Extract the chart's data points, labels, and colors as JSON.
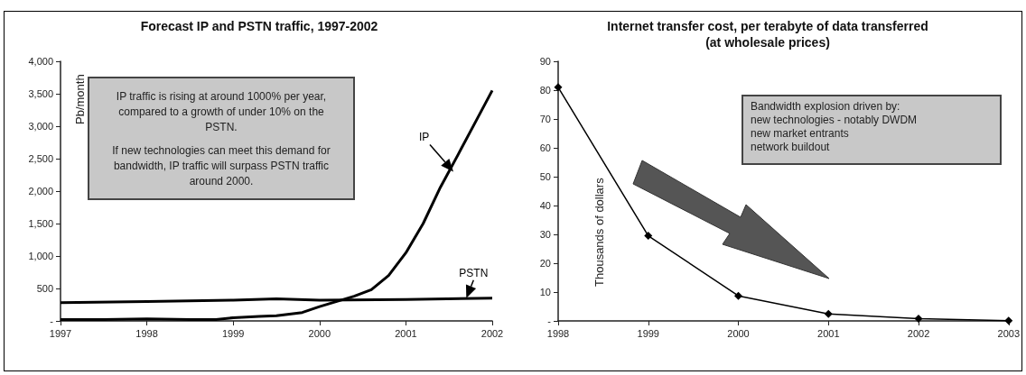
{
  "chart_data": [
    {
      "type": "line",
      "title": "Forecast IP and PSTN traffic, 1997-2002",
      "ylabel": "Pb/month",
      "marker": "none",
      "grid": false,
      "legend": false,
      "xlim": [
        1997,
        2002
      ],
      "xticks": [
        1997,
        1998,
        1999,
        2000,
        2001,
        2002
      ],
      "ylim": [
        0,
        4000
      ],
      "yticks": [
        {
          "value": 0,
          "label": "-"
        },
        500,
        {
          "value": 1000,
          "label": "1,000"
        },
        {
          "value": 1500,
          "label": "1,500"
        },
        {
          "value": 2000,
          "label": "2,000"
        },
        {
          "value": 2500,
          "label": "2,500"
        },
        {
          "value": 3000,
          "label": "3,000"
        },
        {
          "value": 3500,
          "label": "3,500"
        },
        {
          "value": 4000,
          "label": "4,000"
        }
      ],
      "annotations": [
        "IP traffic is rising at around 1000% per year, compared to a growth of under 10% on the PSTN.",
        "If new technologies can meet this demand for bandwidth, IP traffic will surpass PSTN traffic around 2000."
      ],
      "series": [
        {
          "name": "IP",
          "color": "#000000",
          "x": [
            1997,
            1997.5,
            1998,
            1998.5,
            1998.8,
            1999,
            1999.3,
            1999.5,
            1999.8,
            2000,
            2000.2,
            2000.4,
            2000.6,
            2000.8,
            2001,
            2001.2,
            2001.4,
            2001.6,
            2001.8,
            2002
          ],
          "values": [
            20,
            20,
            30,
            20,
            20,
            50,
            70,
            80,
            130,
            220,
            300,
            380,
            480,
            700,
            1050,
            1500,
            2060,
            2550,
            3050,
            3550
          ]
        },
        {
          "name": "PSTN",
          "color": "#000000",
          "x": [
            1997,
            1998,
            1999,
            1999.5,
            2000,
            2001,
            2002
          ],
          "values": [
            280,
            300,
            320,
            340,
            320,
            330,
            350
          ]
        }
      ]
    },
    {
      "type": "line",
      "title": "Internet transfer cost, per terabyte of data transferred\n(at wholesale prices)",
      "ylabel": "Thousands of dollars",
      "marker": "diamond",
      "grid": false,
      "legend": false,
      "categories": [
        "1998",
        "1999",
        "2000",
        "2001",
        "2002",
        "2003"
      ],
      "ylim": [
        0,
        90
      ],
      "yticks": [
        {
          "value": 0,
          "label": "-"
        },
        10,
        20,
        30,
        40,
        50,
        60,
        70,
        80,
        90
      ],
      "annotations": [
        "Bandwidth explosion driven by:\nnew technologies - notably DWDM\nnew market entrants\nnetwork buildout"
      ],
      "series": [
        {
          "color": "#000000",
          "values": [
            81,
            29.5,
            8.7,
            2.4,
            0.8,
            0.1
          ]
        }
      ]
    }
  ]
}
